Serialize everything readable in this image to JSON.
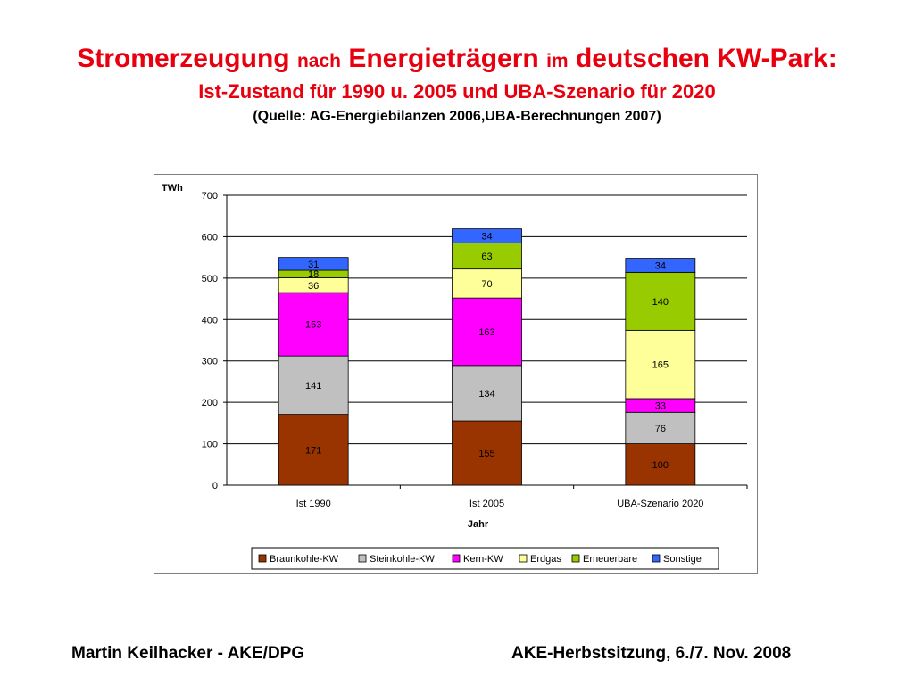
{
  "slide": {
    "title_part1": "Stromerzeugung",
    "title_part2": "nach",
    "title_part3": "Energieträgern",
    "title_part4": "im",
    "title_part5": "deutschen KW-Park:",
    "subtitle": "Ist-Zustand für 1990 u. 2005 und UBA-Szenario für 2020",
    "source": "(Quelle: AG-Energiebilanzen 2006,UBA-Berechnungen 2007)",
    "footer_left": "Martin Keilhacker - AKE/DPG",
    "footer_right": "AKE-Herbstsitzung, 6./7. Nov. 2008"
  },
  "chart_data": {
    "type": "bar",
    "stacked": true,
    "categories": [
      "Ist 1990",
      "Ist 2005",
      "UBA-Szenario 2020"
    ],
    "series": [
      {
        "name": "Braunkohle-KW",
        "color": "#993300",
        "values": [
          171,
          155,
          100
        ]
      },
      {
        "name": "Steinkohle-KW",
        "color": "#c0c0c0",
        "values": [
          141,
          134,
          76
        ]
      },
      {
        "name": "Kern-KW",
        "color": "#ff00ff",
        "values": [
          153,
          163,
          33
        ]
      },
      {
        "name": "Erdgas",
        "color": "#ffff99",
        "values": [
          36,
          70,
          165
        ]
      },
      {
        "name": "Erneuerbare",
        "color": "#99cc00",
        "values": [
          18,
          63,
          140
        ]
      },
      {
        "name": "Sonstige",
        "color": "#3366ff",
        "values": [
          31,
          34,
          34
        ]
      }
    ],
    "ylabel": "TWh",
    "xlabel": "Jahr",
    "ylim": [
      0,
      700
    ],
    "yticks": [
      0,
      100,
      200,
      300,
      400,
      500,
      600,
      700
    ],
    "grid": true,
    "legend_position": "bottom"
  }
}
